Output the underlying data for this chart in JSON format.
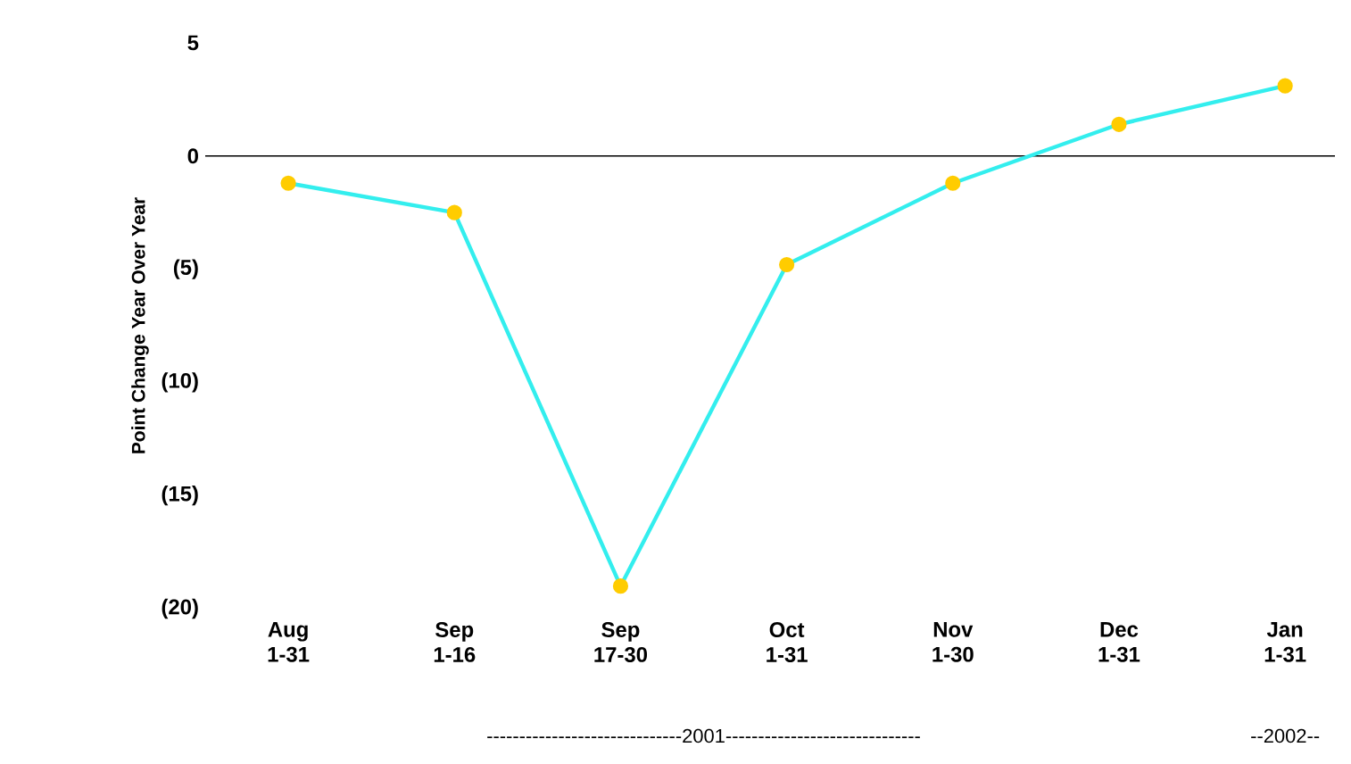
{
  "chart_data": {
    "type": "line",
    "ylabel": "Point Change Year Over Year",
    "categories": [
      "Aug 1-31",
      "Sep 1-16",
      "Sep 17-30",
      "Oct 1-31",
      "Nov 1-30",
      "Dec 1-31",
      "Jan 1-31"
    ],
    "series": [
      {
        "color": "#33eeee",
        "colors": [
          "#ffcc00",
          "#ffcc00",
          "#ffcc00",
          "#ffcc00",
          "#ffcc00",
          "#ffcc00",
          "#ffcc00"
        ],
        "values": [
          -1.2,
          -2.5,
          -19.0,
          -4.8,
          -1.2,
          1.4,
          3.1
        ]
      }
    ],
    "ylim": [
      -20,
      5
    ],
    "yticks": [
      5,
      0,
      {
        "value": -5,
        "label": "(5)"
      },
      {
        "value": -10,
        "label": "(10)"
      },
      {
        "value": -15,
        "label": "(15)"
      },
      {
        "value": -20,
        "label": "(20)"
      }
    ],
    "marker": "circle",
    "grid": false,
    "ref_lines": [
      {
        "axis": "y",
        "value": 0
      }
    ],
    "annotations": [
      "------------------------------2001------------------------------",
      "--2002--"
    ]
  }
}
